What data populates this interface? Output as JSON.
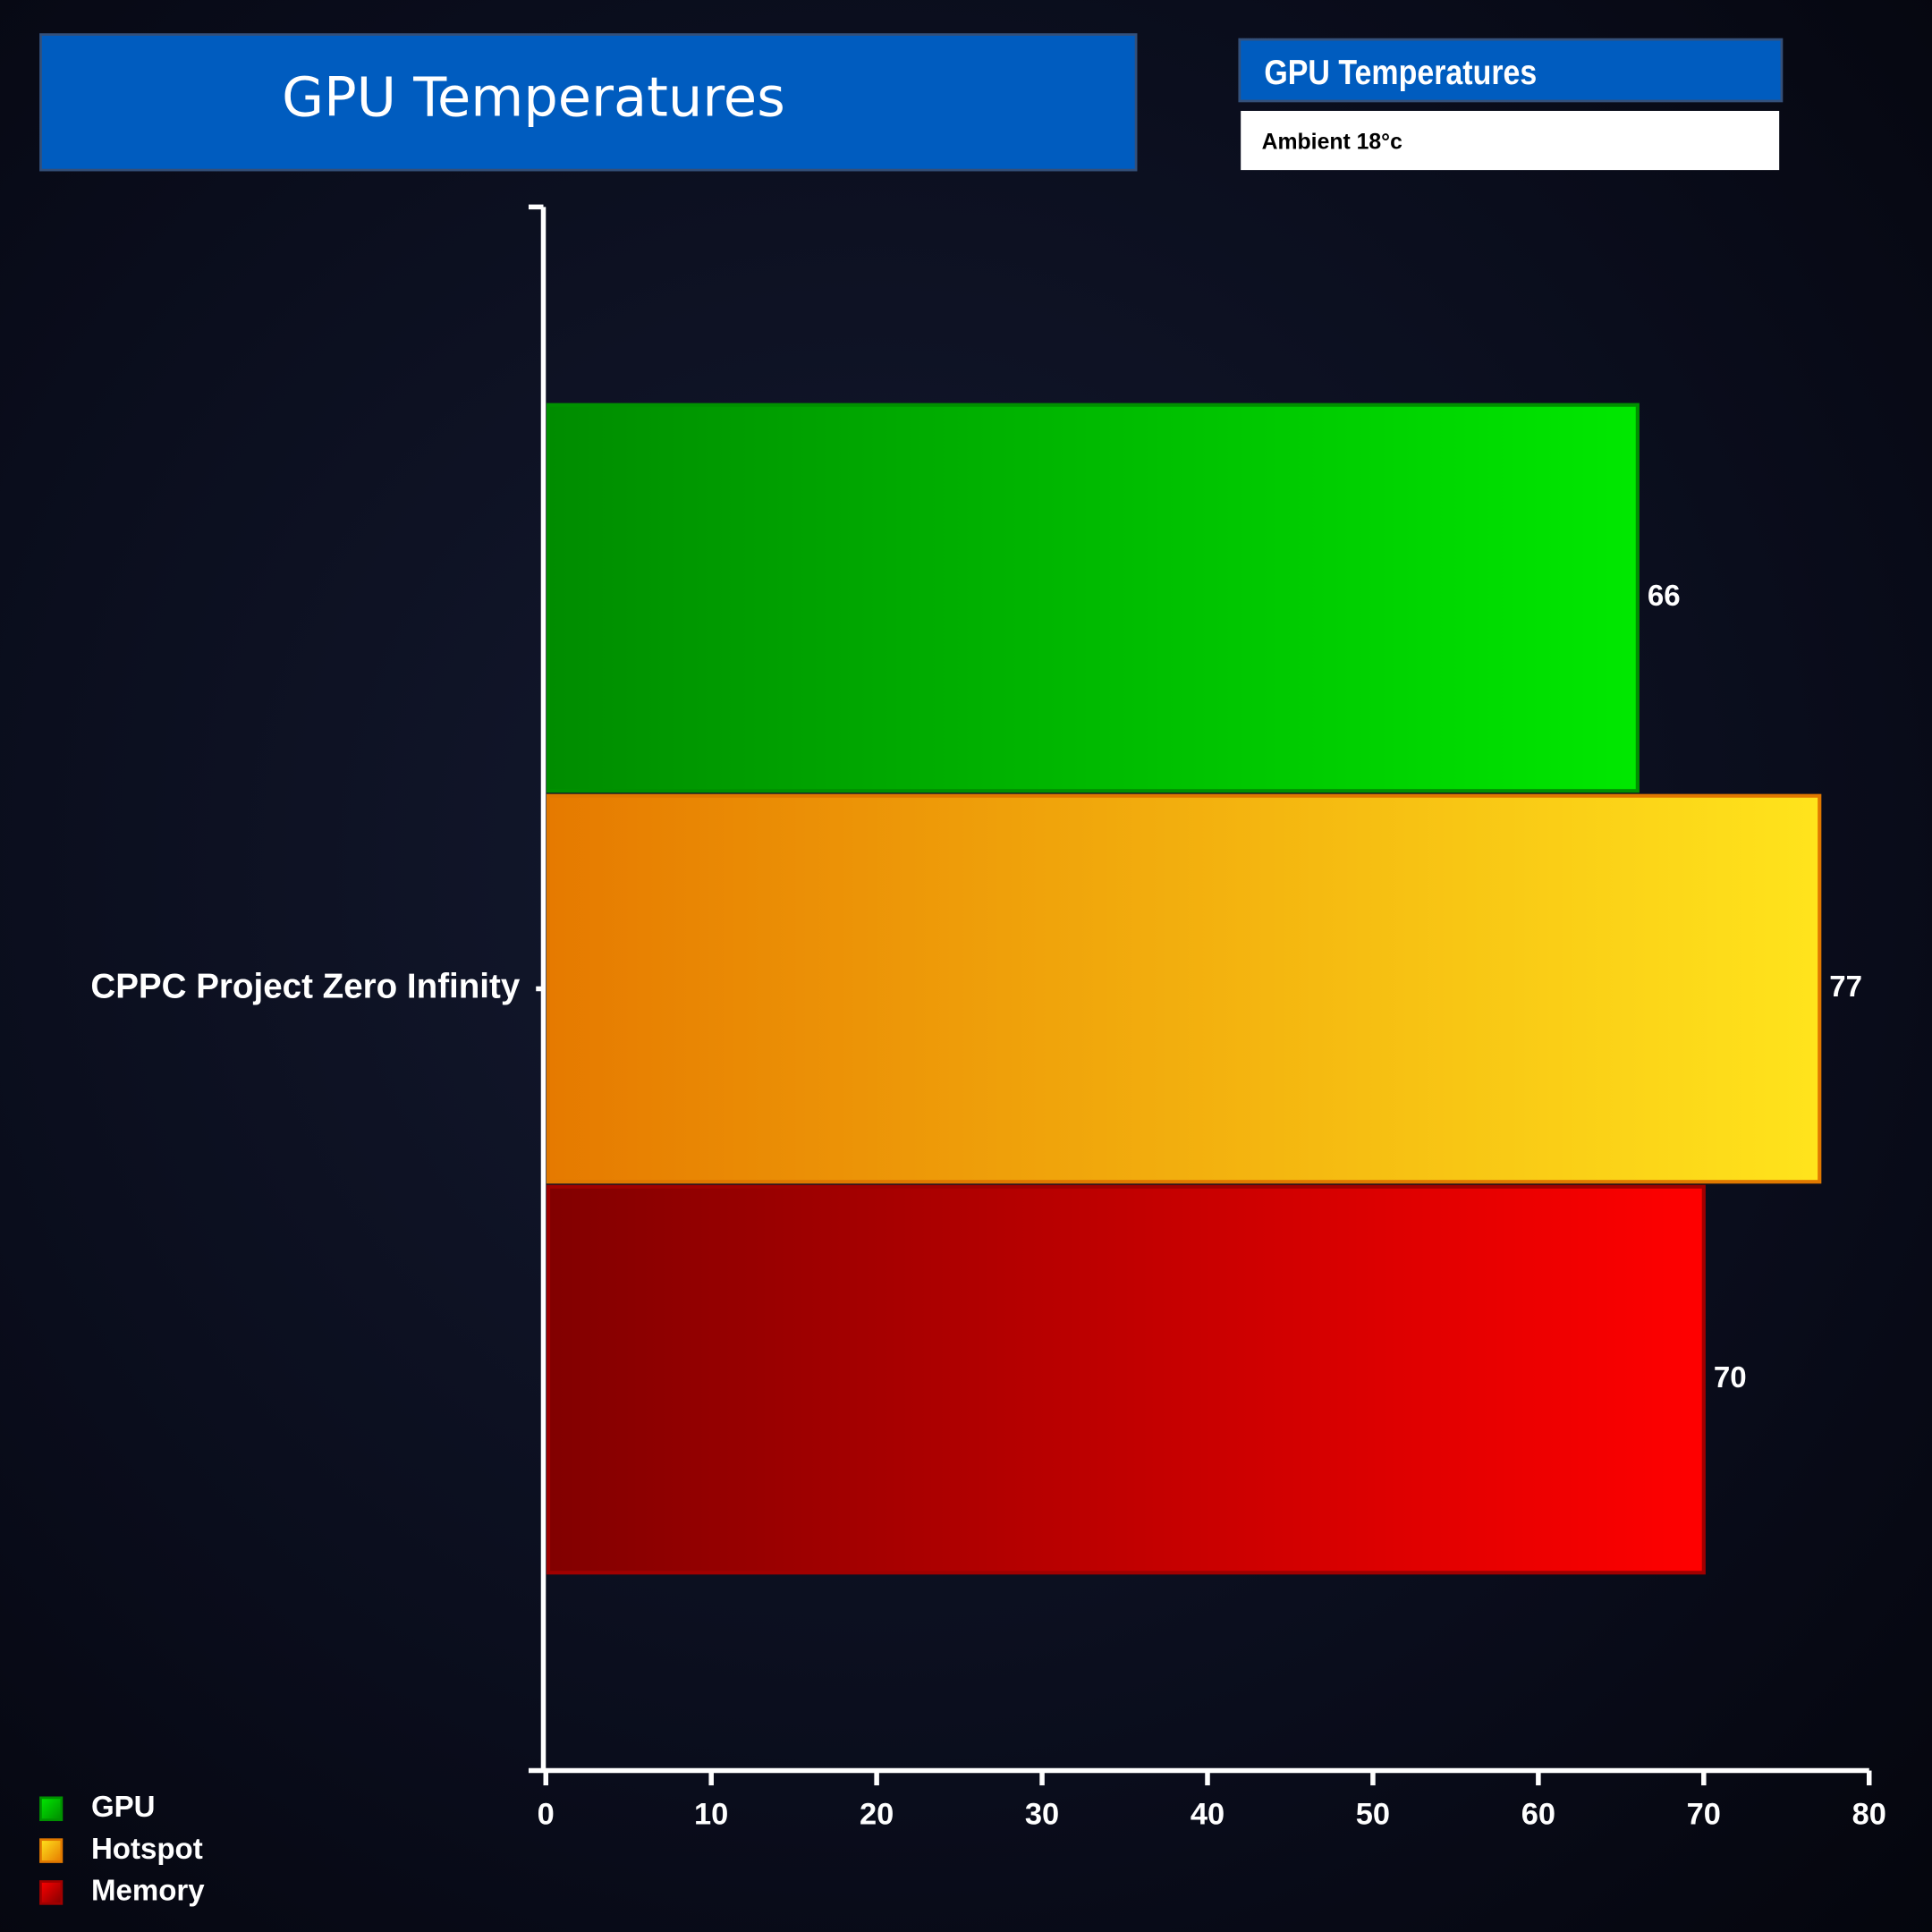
{
  "chart_data": {
    "type": "bar",
    "orientation": "horizontal",
    "title": "GPU Temperatures",
    "subtitle": "GPU Temperatures",
    "note": "Ambient 18°c",
    "categories": [
      "CPPC Project Zero Infinity"
    ],
    "series": [
      {
        "name": "GPU",
        "color": "#009000",
        "gradient": [
          "#008c00",
          "#00e800"
        ],
        "values": [
          66
        ]
      },
      {
        "name": "Hotspot",
        "color": "#e07800",
        "gradient": [
          "#e67a00",
          "#ffe41c"
        ],
        "values": [
          77
        ]
      },
      {
        "name": "Memory",
        "color": "#a00000",
        "gradient": [
          "#820000",
          "#ff0000"
        ],
        "values": [
          70
        ]
      }
    ],
    "xlim": [
      0,
      80
    ],
    "xticks": [
      0,
      10,
      20,
      30,
      40,
      50,
      60,
      70,
      80
    ],
    "legend": "bottom-left"
  }
}
